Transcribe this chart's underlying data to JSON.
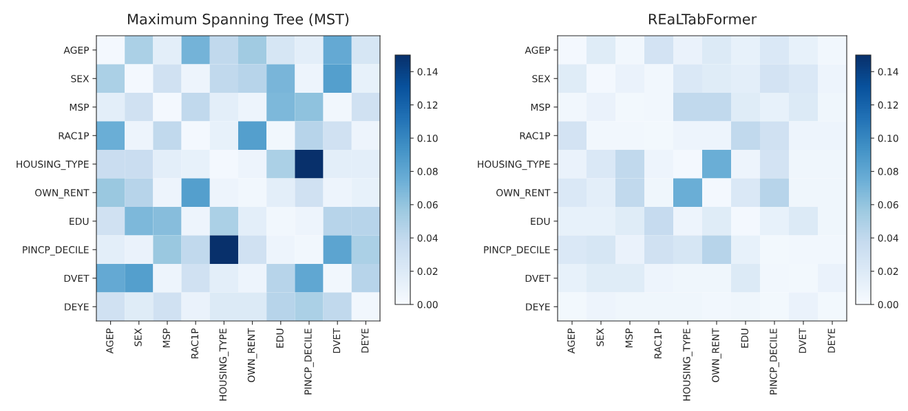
{
  "chart_data": [
    {
      "type": "heatmap",
      "title": "Maximum Spanning Tree (MST)",
      "categories": [
        "AGEP",
        "SEX",
        "MSP",
        "RAC1P",
        "HOUSING_TYPE",
        "OWN_RENT",
        "EDU",
        "PINCP_DECILE",
        "DVET",
        "DEYE"
      ],
      "y_categories": [
        "AGEP",
        "SEX",
        "MSP",
        "RAC1P",
        "HOUSING_TYPE",
        "OWN_RENT",
        "EDU",
        "PINCP_DECILE",
        "DVET",
        "DEYE"
      ],
      "cells": [
        [
          0.003,
          0.05,
          0.015,
          0.072,
          0.04,
          0.055,
          0.025,
          0.015,
          0.078,
          0.025
        ],
        [
          0.05,
          0.003,
          0.03,
          0.008,
          0.04,
          0.045,
          0.07,
          0.008,
          0.085,
          0.012
        ],
        [
          0.015,
          0.03,
          0.003,
          0.04,
          0.015,
          0.008,
          0.068,
          0.062,
          0.005,
          0.03
        ],
        [
          0.075,
          0.008,
          0.04,
          0.003,
          0.012,
          0.085,
          0.005,
          0.045,
          0.03,
          0.008
        ],
        [
          0.035,
          0.035,
          0.015,
          0.012,
          0.003,
          0.008,
          0.05,
          0.15,
          0.015,
          0.015
        ],
        [
          0.058,
          0.045,
          0.008,
          0.085,
          0.008,
          0.005,
          0.015,
          0.03,
          0.008,
          0.012
        ],
        [
          0.03,
          0.068,
          0.065,
          0.008,
          0.05,
          0.015,
          0.005,
          0.008,
          0.045,
          0.045
        ],
        [
          0.015,
          0.01,
          0.058,
          0.04,
          0.15,
          0.03,
          0.008,
          0.005,
          0.082,
          0.05
        ],
        [
          0.078,
          0.085,
          0.008,
          0.03,
          0.015,
          0.008,
          0.045,
          0.08,
          0.005,
          0.045
        ],
        [
          0.03,
          0.018,
          0.03,
          0.01,
          0.02,
          0.02,
          0.045,
          0.05,
          0.04,
          0.005
        ]
      ],
      "clim": [
        0,
        0.15
      ],
      "cticks": [
        {
          "value": 0,
          "label": "0.00"
        },
        {
          "value": 0.02,
          "label": "0.02"
        },
        {
          "value": 0.04,
          "label": "0.04"
        },
        {
          "value": 0.06,
          "label": "0.06"
        },
        {
          "value": 0.08,
          "label": "0.08"
        },
        {
          "value": 0.1,
          "label": "0.10"
        },
        {
          "value": 0.12,
          "label": "0.12"
        },
        {
          "value": 0.14,
          "label": "0.14"
        }
      ]
    },
    {
      "type": "heatmap",
      "title": "REaLTabFormer",
      "categories": [
        "AGEP",
        "SEX",
        "MSP",
        "RAC1P",
        "HOUSING_TYPE",
        "OWN_RENT",
        "EDU",
        "PINCP_DECILE",
        "DVET",
        "DEYE"
      ],
      "y_categories": [
        "AGEP",
        "SEX",
        "MSP",
        "RAC1P",
        "HOUSING_TYPE",
        "OWN_RENT",
        "EDU",
        "PINCP_DECILE",
        "DVET",
        "DEYE"
      ],
      "cells": [
        [
          0.003,
          0.018,
          0.005,
          0.028,
          0.01,
          0.02,
          0.012,
          0.022,
          0.012,
          0.005
        ],
        [
          0.018,
          0.003,
          0.01,
          0.005,
          0.022,
          0.018,
          0.015,
          0.028,
          0.022,
          0.008
        ],
        [
          0.005,
          0.01,
          0.004,
          0.005,
          0.04,
          0.04,
          0.018,
          0.012,
          0.02,
          0.006
        ],
        [
          0.028,
          0.005,
          0.005,
          0.004,
          0.008,
          0.008,
          0.04,
          0.03,
          0.008,
          0.008
        ],
        [
          0.01,
          0.022,
          0.04,
          0.008,
          0.003,
          0.075,
          0.008,
          0.028,
          0.006,
          0.006
        ],
        [
          0.022,
          0.015,
          0.04,
          0.006,
          0.075,
          0.003,
          0.022,
          0.045,
          0.006,
          0.006
        ],
        [
          0.012,
          0.012,
          0.018,
          0.038,
          0.008,
          0.018,
          0.003,
          0.012,
          0.02,
          0.006
        ],
        [
          0.022,
          0.025,
          0.01,
          0.03,
          0.025,
          0.045,
          0.012,
          0.004,
          0.005,
          0.005
        ],
        [
          0.012,
          0.018,
          0.018,
          0.008,
          0.006,
          0.006,
          0.02,
          0.005,
          0.004,
          0.01
        ],
        [
          0.004,
          0.008,
          0.006,
          0.006,
          0.006,
          0.005,
          0.006,
          0.004,
          0.01,
          0.004
        ]
      ],
      "clim": [
        0,
        0.15
      ],
      "cticks": [
        {
          "value": 0,
          "label": "0.00"
        },
        {
          "value": 0.02,
          "label": "0.02"
        },
        {
          "value": 0.04,
          "label": "0.04"
        },
        {
          "value": 0.06,
          "label": "0.06"
        },
        {
          "value": 0.08,
          "label": "0.08"
        },
        {
          "value": 0.1,
          "label": "0.10"
        },
        {
          "value": 0.12,
          "label": "0.12"
        },
        {
          "value": 0.14,
          "label": "0.14"
        }
      ]
    }
  ]
}
